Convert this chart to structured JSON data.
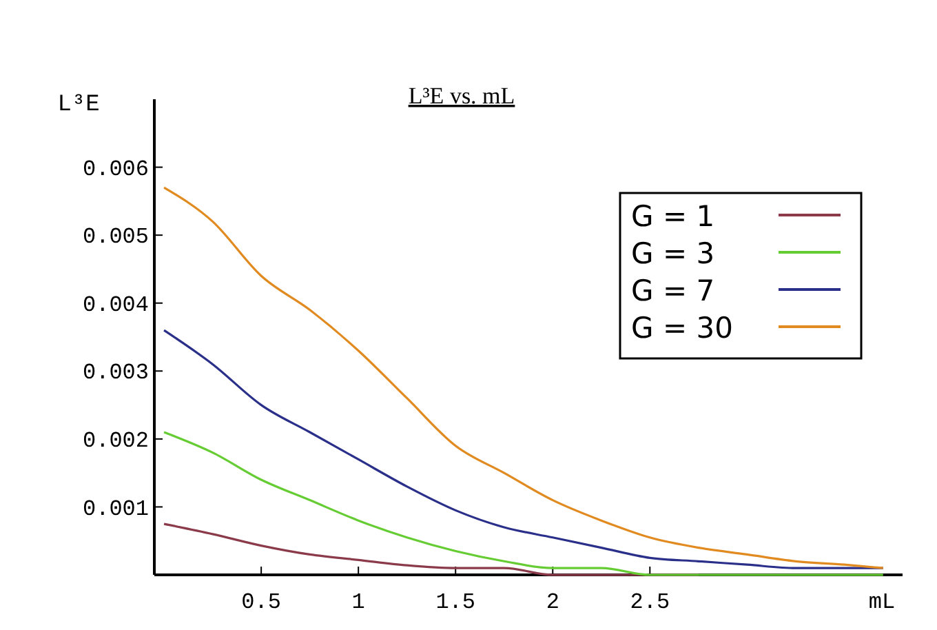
{
  "chart_data": {
    "type": "line",
    "title": "L³E vs. mL",
    "xlabel": "mL",
    "ylabel": "L³E",
    "x": [
      0,
      0.25,
      0.5,
      0.75,
      1,
      1.25,
      1.5,
      1.75,
      2,
      2.25,
      2.5,
      2.75,
      3,
      3.25,
      3.5,
      3.7
    ],
    "xlim": [
      -0.05,
      3.8
    ],
    "ylim": [
      0,
      0.007
    ],
    "xticks": [
      0.5,
      1,
      1.5,
      2,
      2.5
    ],
    "yticks": [
      0.001,
      0.002,
      0.003,
      0.004,
      0.005,
      0.006
    ],
    "series": [
      {
        "name": "G = 1",
        "color": "#8b3a4a",
        "values": [
          0.00075,
          0.0006,
          0.00043,
          0.0003,
          0.00022,
          0.00014,
          0.0001,
          0.0001,
          0.0,
          0.0,
          0.0,
          0.0,
          null,
          null,
          null,
          null
        ]
      },
      {
        "name": "G = 3",
        "color": "#66cc33",
        "values": [
          0.0021,
          0.0018,
          0.0014,
          0.0011,
          0.0008,
          0.00055,
          0.00035,
          0.0002,
          0.0001,
          0.0001,
          0.0,
          0.0,
          0.0,
          0.0,
          0.0,
          0.0
        ]
      },
      {
        "name": "G = 7",
        "color": "#2a2f8a",
        "values": [
          0.0036,
          0.0031,
          0.0025,
          0.0021,
          0.0017,
          0.0013,
          0.00095,
          0.0007,
          0.00055,
          0.0004,
          0.00025,
          0.0002,
          0.00015,
          0.0001,
          0.0001,
          0.0001
        ]
      },
      {
        "name": "G = 30",
        "color": "#e08a20",
        "values": [
          0.0057,
          0.0052,
          0.0044,
          0.0039,
          0.0033,
          0.0026,
          0.0019,
          0.0015,
          0.0011,
          0.0008,
          0.00055,
          0.0004,
          0.0003,
          0.0002,
          0.00015,
          0.0001
        ]
      }
    ],
    "legend": "top right",
    "grid": false
  }
}
